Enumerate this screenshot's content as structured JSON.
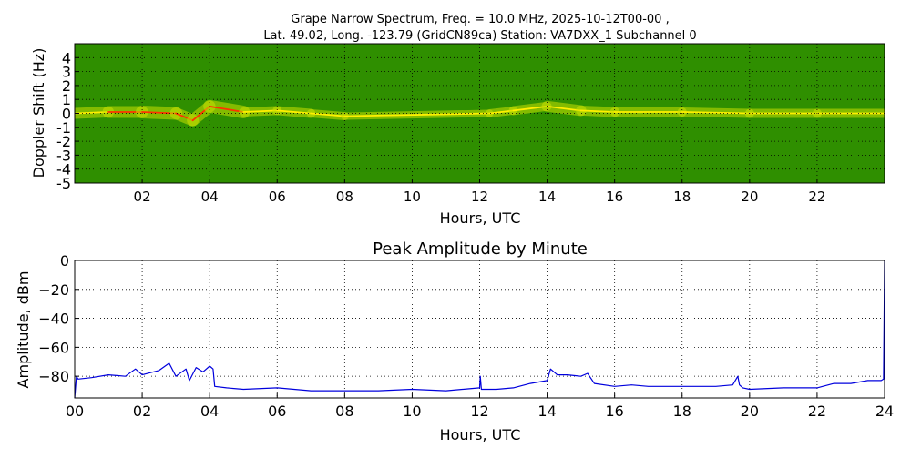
{
  "figure": {
    "title_line1": "Grape Narrow Spectrum, Freq. = 10.0 MHz, 2025-10-12T00-00 ,",
    "title_line2": "Lat.  49.02, Long. -123.79 (GridCN89ca) Station: VA7DXX_1 Subchannel 0"
  },
  "colors": {
    "spectrogram_background": "#2f8f00",
    "spectrogram_mid": "#c8e000",
    "spectrogram_peak": "#ff3300",
    "amplitude_line": "#0000dd",
    "grid": "#000000"
  },
  "chart_data": [
    {
      "type": "heatmap",
      "title": "",
      "xlabel": "Hours, UTC",
      "ylabel": "Doppler Shift (Hz)",
      "xlim": [
        0,
        24
      ],
      "ylim": [
        -5,
        5
      ],
      "xticks": [
        "02",
        "04",
        "06",
        "08",
        "10",
        "12",
        "14",
        "16",
        "18",
        "20",
        "22"
      ],
      "yticks": [
        "4",
        "3",
        "2",
        "1",
        "0",
        "-1",
        "-2",
        "-3",
        "-4",
        "-5"
      ],
      "grid": true,
      "signal_trace": {
        "x": [
          0,
          1,
          2,
          3,
          3.5,
          4,
          5,
          6,
          7,
          8,
          12.3,
          13,
          14,
          15,
          16,
          18,
          20,
          22,
          24
        ],
        "y": [
          0.0,
          0.1,
          0.1,
          0.0,
          -0.5,
          0.5,
          0.1,
          0.2,
          0.0,
          -0.2,
          0.0,
          0.2,
          0.5,
          0.2,
          0.1,
          0.1,
          0.0,
          0.0,
          0.0
        ],
        "intensity": [
          0.8,
          0.9,
          1.0,
          0.9,
          0.9,
          1.0,
          0.6,
          0.6,
          0.5,
          0.4,
          0.5,
          0.6,
          0.8,
          0.7,
          0.6,
          0.6,
          0.6,
          0.6,
          0.6
        ]
      }
    },
    {
      "type": "line",
      "title": "Peak Amplitude by Minute",
      "xlabel": "Hours, UTC",
      "ylabel": "Amplitude, dBm",
      "xlim": [
        0,
        24
      ],
      "ylim": [
        -95,
        0
      ],
      "xticks": [
        "00",
        "02",
        "04",
        "06",
        "08",
        "10",
        "12",
        "14",
        "16",
        "18",
        "20",
        "22",
        "24"
      ],
      "yticks": [
        "0",
        "−20",
        "−40",
        "−60",
        "−80"
      ],
      "grid": true,
      "series": [
        {
          "x": [
            0,
            0.05,
            0.1,
            0.5,
            1.0,
            1.5,
            1.8,
            2.0,
            2.5,
            2.8,
            3.0,
            3.3,
            3.4,
            3.6,
            3.8,
            4.0,
            4.1,
            4.15,
            4.5,
            5.0,
            6.0,
            7.0,
            8.0,
            9.0,
            10.0,
            11.0,
            12.0,
            12.02,
            12.05,
            12.5,
            13.0,
            13.5,
            14.0,
            14.1,
            14.3,
            14.6,
            15.0,
            15.2,
            15.4,
            16.0,
            16.5,
            17.0,
            17.5,
            18.0,
            18.5,
            19.0,
            19.5,
            19.65,
            19.7,
            19.8,
            20.0,
            21.0,
            22.0,
            22.5,
            23.0,
            23.5,
            23.9,
            23.97,
            24.0
          ],
          "y": [
            -95,
            -80,
            -82,
            -81,
            -79,
            -80,
            -75,
            -79,
            -76,
            -71,
            -80,
            -75,
            -83,
            -74,
            -77,
            -73,
            -75,
            -87,
            -88,
            -89,
            -88,
            -90,
            -90,
            -90,
            -89,
            -90,
            -88,
            -80,
            -89,
            -89,
            -88,
            -85,
            -83,
            -75,
            -79,
            -79,
            -80,
            -78,
            -85,
            -87,
            -86,
            -87,
            -87,
            -87,
            -87,
            -87,
            -86,
            -80,
            -86,
            -88,
            -89,
            -88,
            -88,
            -85,
            -85,
            -83,
            -83,
            -82,
            0
          ]
        }
      ]
    }
  ]
}
